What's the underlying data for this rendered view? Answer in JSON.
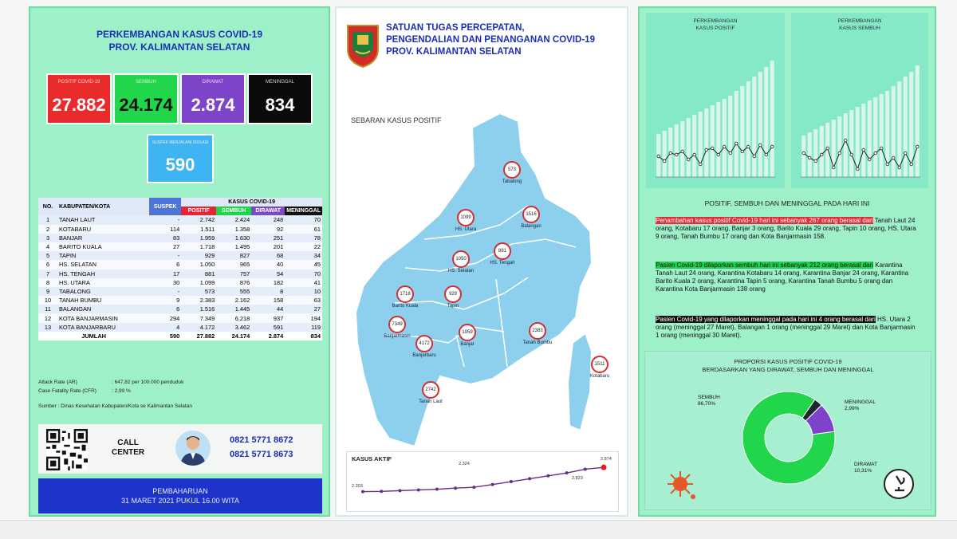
{
  "left": {
    "title_line1": "PERKEMBANGAN KASUS COVID-19",
    "title_line2": "PROV. KALIMANTAN SELATAN",
    "stats": [
      {
        "label": "POSITIF COVID-19",
        "value": "27.882",
        "color": "#ea2b2b",
        "text_color": "#ffffff"
      },
      {
        "label": "SEMBUH",
        "value": "24.174",
        "color": "#22d64b",
        "text_color": "#111111"
      },
      {
        "label": "DIRAWAT",
        "value": "2.874",
        "color": "#7d43c8",
        "text_color": "#ffffff"
      },
      {
        "label": "MENINGGAL",
        "value": "834",
        "color": "#0b0b0b",
        "text_color": "#ffffff"
      }
    ],
    "suspek": {
      "label": "SUSPEK MENJALANI ISOLASI",
      "value": "590"
    },
    "table": {
      "headers": {
        "no": "NO.",
        "kab": "KABUPATEN/KOTA",
        "suspek": "SUSPEK",
        "kasus": "KASUS COVID-19",
        "positif": "POSITIF",
        "sembuh": "SEMBUH",
        "dirawat": "DIRAWAT",
        "meninggal": "MENINGGAL"
      },
      "rows": [
        [
          "1",
          "TANAH LAUT",
          "-",
          "2.742",
          "2.424",
          "248",
          "70"
        ],
        [
          "2",
          "KOTABARU",
          "114",
          "1.511",
          "1.358",
          "92",
          "61"
        ],
        [
          "3",
          "BANJAR",
          "83",
          "1.959",
          "1.630",
          "251",
          "78"
        ],
        [
          "4",
          "BARITO KUALA",
          "27",
          "1.718",
          "1.495",
          "201",
          "22"
        ],
        [
          "5",
          "TAPIN",
          "-",
          "929",
          "827",
          "68",
          "34"
        ],
        [
          "6",
          "HS. SELATAN",
          "6",
          "1.050",
          "965",
          "40",
          "45"
        ],
        [
          "7",
          "HS. TENGAH",
          "17",
          "881",
          "757",
          "54",
          "70"
        ],
        [
          "8",
          "HS. UTARA",
          "30",
          "1.099",
          "876",
          "182",
          "41"
        ],
        [
          "9",
          "TABALONG",
          "-",
          "573",
          "555",
          "8",
          "10"
        ],
        [
          "10",
          "TANAH BUMBU",
          "9",
          "2.383",
          "2.162",
          "158",
          "63"
        ],
        [
          "11",
          "BALANGAN",
          "6",
          "1.516",
          "1.445",
          "44",
          "27"
        ],
        [
          "12",
          "KOTA BANJARMASIN",
          "294",
          "7.349",
          "6.218",
          "937",
          "194"
        ],
        [
          "13",
          "KOTA BANJARBARU",
          "4",
          "4.172",
          "3.462",
          "591",
          "119"
        ]
      ],
      "total": {
        "label": "JUMLAH",
        "suspek": "590",
        "positif": "27.882",
        "sembuh": "24.174",
        "dirawat": "2.874",
        "meninggal": "834"
      }
    },
    "attack_rate_label": "Attack Rate (AR)",
    "attack_rate_value": ": 647,82 per 100.000 penduduk",
    "cfr_label": "Case Fatality Rate (CFR)",
    "cfr_value": ": 2,99 %",
    "sumber": "Sumber : Dinas Kesehatan Kabupaten/Kota se Kalimantan Selatan",
    "call_center_line1": "CALL",
    "call_center_line2": "CENTER",
    "phone1": "0821 5771 8672",
    "phone2": "0821 5771 8673",
    "update_line1": "PEMBAHARUAN",
    "update_line2": "31 MARET 2021 PUKUL 16.00 WITA"
  },
  "middle": {
    "title_line1": "SATUAN TUGAS PERCEPATAN,",
    "title_line2": "PENGENDALIAN DAN PENANGANAN COVID-19",
    "title_line3": "PROV. KALIMANTAN SELATAN",
    "map_title": "SEBARAN KASUS POSITIF",
    "map_pins": [
      {
        "value": "573",
        "name": "Tabalong"
      },
      {
        "value": "1099",
        "name": "HS. Utara"
      },
      {
        "value": "1516",
        "name": "Balangan"
      },
      {
        "value": "881",
        "name": "HS. Tengah"
      },
      {
        "value": "1050",
        "name": "HS. Selatan"
      },
      {
        "value": "1718",
        "name": "Barito Kuala"
      },
      {
        "value": "929",
        "name": "Tapin"
      },
      {
        "value": "7349",
        "name": "Banjarmasin"
      },
      {
        "value": "4172",
        "name": "Banjarbaru"
      },
      {
        "value": "1959",
        "name": "Banjar"
      },
      {
        "value": "2383",
        "name": "Tanah Bumbu"
      },
      {
        "value": "1511",
        "name": "Kotabaru"
      },
      {
        "value": "2742",
        "name": "Tanah Laut"
      }
    ],
    "kasus_aktif_title": "KASUS AKTIF",
    "kasus_aktif_labels": {
      "start": "2.203",
      "mid1": "2.324",
      "mid2": "2.823",
      "end": "2.874"
    }
  },
  "right": {
    "chart1_title_line1": "PERKEMBANGAN",
    "chart1_title_line2": "KASUS POSITIF",
    "chart2_title_line1": "PERKEMBANGAN",
    "chart2_title_line2": "KASUS SEMBUH",
    "heading": "POSITIF, SEMBUH DAN MENINGGAL PADA HARI INI",
    "para1_highlight": "Penambahan kasus positif Covid-19 hari ini sebanyak 267 orang berasal dari",
    "para1_text": " Tanah Laut 24 orang, Kotabaru 17 orang, Banjar 3 orang, Barito Kuala 29 orang, Tapin 10 orang, HS. Utara 9 orang, Tanah Bumbu 17 orang dan Kota Banjarmasin 158.",
    "para2_highlight": "Pasien Covid-19 dilaporkan sembuh hari ini sebanyak 212 orang berasal dari",
    "para2_text": " Karantina Tanah Laut 24 orang, Karantina Kotabaru 14 orang, Karantina Banjar 24 orang, Karantina Barito Kuala 2 orang, Karantina Tapin 5 orang, Karantina Tanah Bumbu 5 orang dan Karantina Kota Banjarmasin 138 orang",
    "para3_highlight": "Pasien Covid-19 yang dilaporkan meninggal pada hari ini 4 orang berasal dari",
    "para3_text": " HS. Utara 2 orang (meninggal 27 Maret), Balangan 1 orang (meninggal 29 Maret) dan Kota Banjarmasin 1 orang (meninggal 30 Maret).",
    "proporsi_title_line1": "PROPORSI KASUS POSITIF COVID-19",
    "proporsi_title_line2": "BERDASARKAN YANG DIRAWAT, SEMBUH DAN MENINGGAL",
    "donut": {
      "sembuh_label": "SEMBUH",
      "sembuh_value": "86,70%",
      "meninggal_label": "MENINGGAL",
      "meninggal_value": "2,99%",
      "dirawat_label": "DIRAWAT",
      "dirawat_value": "10,31%",
      "colors": {
        "sembuh": "#22d64b",
        "meninggal": "#1a2a2a",
        "dirawat": "#7d43c8"
      }
    }
  }
}
